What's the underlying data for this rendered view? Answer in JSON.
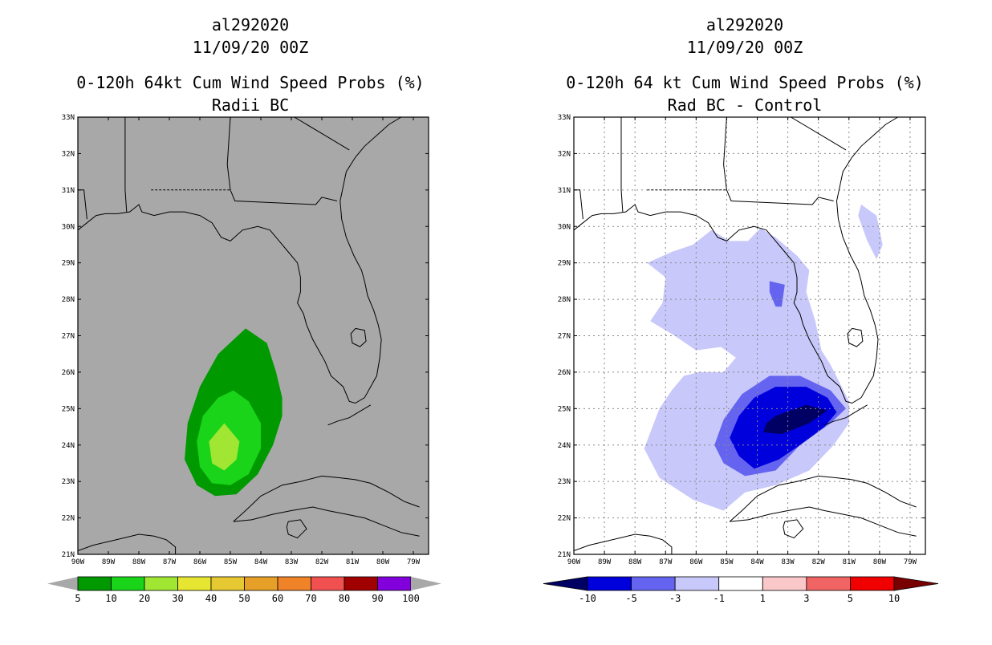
{
  "panels": [
    {
      "title_line1": "al292020",
      "title_line2": "11/09/20 00Z",
      "title_line3": "0-120h 64kt Cum Wind Speed Probs (%)",
      "title_line4": "Radii BC",
      "background": "#a8a8a8",
      "land_background": "#a8a8a8"
    },
    {
      "title_line1": "al292020",
      "title_line2": "11/09/20 00Z",
      "title_line3": "0-120h 64 kt Cum Wind Speed Probs (%)",
      "title_line4": "Rad BC - Control",
      "background": "#ffffff"
    }
  ],
  "chart_data": [
    {
      "type": "heatmap",
      "title": "0-120h 64kt Cum Wind Speed Probs (%)",
      "subtitle": "Radii BC",
      "storm_id": "al292020",
      "datetime": "11/09/20 00Z",
      "x_range": [
        -90,
        -78.5
      ],
      "y_range": [
        21,
        33
      ],
      "x_ticks": [
        -90,
        -89,
        -88,
        -87,
        -86,
        -85,
        -84,
        -83,
        -82,
        -81,
        -80,
        -79
      ],
      "x_tick_labels": [
        "90W",
        "89W",
        "88W",
        "87W",
        "86W",
        "85W",
        "84W",
        "83W",
        "82W",
        "81W",
        "80W",
        "79W"
      ],
      "y_ticks": [
        21,
        22,
        23,
        24,
        25,
        26,
        27,
        28,
        29,
        30,
        31,
        32,
        33
      ],
      "y_tick_labels": [
        "21N",
        "22N",
        "23N",
        "24N",
        "25N",
        "26N",
        "27N",
        "28N",
        "29N",
        "30N",
        "31N",
        "32N",
        "33N"
      ],
      "grid": false,
      "colorbar": {
        "labels": [
          "5",
          "10",
          "20",
          "30",
          "40",
          "50",
          "60",
          "70",
          "80",
          "90",
          "100"
        ],
        "colors": [
          "#009a00",
          "#19d419",
          "#a0e632",
          "#e6e632",
          "#e6c832",
          "#e6a028",
          "#f08228",
          "#f05050",
          "#a00000",
          "#8200dc"
        ],
        "end_color": "#a8a8a8"
      },
      "contours": [
        {
          "level": 5,
          "color": "#009a00",
          "points": [
            [
              -84.5,
              27.2
            ],
            [
              -83.8,
              26.8
            ],
            [
              -83.5,
              26.0
            ],
            [
              -83.3,
              25.3
            ],
            [
              -83.3,
              24.8
            ],
            [
              -83.6,
              24.0
            ],
            [
              -84.1,
              23.2
            ],
            [
              -84.8,
              22.65
            ],
            [
              -85.5,
              22.6
            ],
            [
              -86.1,
              22.9
            ],
            [
              -86.5,
              23.6
            ],
            [
              -86.4,
              24.6
            ],
            [
              -86.0,
              25.6
            ],
            [
              -85.4,
              26.5
            ]
          ]
        },
        {
          "level": 10,
          "color": "#19d419",
          "points": [
            [
              -84.9,
              25.5
            ],
            [
              -84.4,
              25.2
            ],
            [
              -84.0,
              24.6
            ],
            [
              -84.0,
              23.9
            ],
            [
              -84.4,
              23.2
            ],
            [
              -85.0,
              22.9
            ],
            [
              -85.6,
              22.95
            ],
            [
              -86.0,
              23.4
            ],
            [
              -86.1,
              24.1
            ],
            [
              -85.9,
              24.8
            ],
            [
              -85.4,
              25.3
            ]
          ]
        },
        {
          "level": 20,
          "color": "#a0e632",
          "points": [
            [
              -85.2,
              24.6
            ],
            [
              -84.7,
              24.1
            ],
            [
              -84.8,
              23.6
            ],
            [
              -85.2,
              23.3
            ],
            [
              -85.6,
              23.5
            ],
            [
              -85.7,
              24.1
            ]
          ]
        }
      ]
    },
    {
      "type": "heatmap",
      "title": "0-120h 64 kt Cum Wind Speed Probs (%)",
      "subtitle": "Rad BC - Control",
      "storm_id": "al292020",
      "datetime": "11/09/20 00Z",
      "x_range": [
        -90,
        -78.5
      ],
      "y_range": [
        21,
        33
      ],
      "x_ticks": [
        -90,
        -89,
        -88,
        -87,
        -86,
        -85,
        -84,
        -83,
        -82,
        -81,
        -80,
        -79
      ],
      "x_tick_labels": [
        "90W",
        "89W",
        "88W",
        "87W",
        "86W",
        "85W",
        "84W",
        "83W",
        "82W",
        "81W",
        "80W",
        "79W"
      ],
      "y_ticks": [
        21,
        22,
        23,
        24,
        25,
        26,
        27,
        28,
        29,
        30,
        31,
        32,
        33
      ],
      "y_tick_labels": [
        "21N",
        "22N",
        "23N",
        "24N",
        "25N",
        "26N",
        "27N",
        "28N",
        "29N",
        "30N",
        "31N",
        "32N",
        "33N"
      ],
      "grid": true,
      "colorbar": {
        "labels": [
          "-10",
          "-5",
          "-3",
          "-1",
          "1",
          "3",
          "5",
          "10"
        ],
        "colors": [
          "#0000dc",
          "#6464f0",
          "#c8c8fa",
          "#ffffff",
          "#fac8c8",
          "#f06464",
          "#f00000"
        ],
        "left_end_color": "#000064",
        "right_end_color": "#780000"
      },
      "contours": [
        {
          "level": -1,
          "color": "#c8c8fa",
          "points": [
            [
              -85.5,
              29.9
            ],
            [
              -84.9,
              29.6
            ],
            [
              -84.3,
              29.6
            ],
            [
              -83.9,
              29.95
            ],
            [
              -83.4,
              29.7
            ],
            [
              -82.7,
              29.2
            ],
            [
              -82.3,
              28.8
            ],
            [
              -82.4,
              28.2
            ],
            [
              -82.1,
              27.4
            ],
            [
              -81.9,
              26.6
            ],
            [
              -81.6,
              26.2
            ],
            [
              -81.0,
              25.2
            ],
            [
              -81.0,
              24.6
            ],
            [
              -81.5,
              24.0
            ],
            [
              -82.3,
              23.3
            ],
            [
              -83.4,
              22.9
            ],
            [
              -84.4,
              22.7
            ],
            [
              -85.1,
              22.2
            ],
            [
              -86.1,
              22.5
            ],
            [
              -87.2,
              23.1
            ],
            [
              -87.7,
              23.9
            ],
            [
              -87.2,
              25.0
            ],
            [
              -86.8,
              25.5
            ],
            [
              -86.4,
              25.9
            ],
            [
              -85.9,
              26.0
            ],
            [
              -85.1,
              26.0
            ],
            [
              -84.7,
              26.4
            ],
            [
              -85.2,
              26.7
            ],
            [
              -85.1,
              26.7
            ],
            [
              -86.0,
              26.6
            ],
            [
              -86.7,
              27.0
            ],
            [
              -87.5,
              27.4
            ],
            [
              -87.1,
              27.9
            ],
            [
              -87.0,
              28.6
            ],
            [
              -87.6,
              29.0
            ],
            [
              -86.8,
              29.3
            ],
            [
              -86.1,
              29.5
            ]
          ]
        },
        {
          "level": -1,
          "color": "#c8c8fa",
          "points": [
            [
              -80.6,
              30.6
            ],
            [
              -80.1,
              30.3
            ],
            [
              -79.9,
              29.5
            ],
            [
              -80.1,
              29.1
            ],
            [
              -80.4,
              29.6
            ],
            [
              -80.7,
              30.3
            ]
          ]
        },
        {
          "level": -3,
          "color": "#6464f0",
          "points": [
            [
              -83.6,
              28.5
            ],
            [
              -83.1,
              28.4
            ],
            [
              -83.2,
              27.8
            ],
            [
              -83.4,
              27.8
            ],
            [
              -83.6,
              28.2
            ]
          ]
        },
        {
          "level": -3,
          "color": "#6464f0",
          "points": [
            [
              -83.6,
              25.9
            ],
            [
              -82.6,
              25.9
            ],
            [
              -81.6,
              25.5
            ],
            [
              -81.1,
              25.0
            ],
            [
              -81.6,
              24.6
            ],
            [
              -82.6,
              24.0
            ],
            [
              -83.4,
              23.3
            ],
            [
              -84.4,
              23.15
            ],
            [
              -85.1,
              23.5
            ],
            [
              -85.4,
              24.0
            ],
            [
              -85.1,
              24.7
            ],
            [
              -84.5,
              25.4
            ]
          ]
        },
        {
          "level": -5,
          "color": "#0000dc",
          "points": [
            [
              -83.4,
              25.6
            ],
            [
              -82.4,
              25.6
            ],
            [
              -81.7,
              25.3
            ],
            [
              -81.4,
              24.9
            ],
            [
              -81.8,
              24.5
            ],
            [
              -82.6,
              24.0
            ],
            [
              -83.3,
              23.6
            ],
            [
              -84.1,
              23.35
            ],
            [
              -84.6,
              23.7
            ],
            [
              -84.9,
              24.2
            ],
            [
              -84.6,
              24.8
            ],
            [
              -84.1,
              25.3
            ]
          ]
        },
        {
          "level": -10,
          "color": "#000064",
          "points": [
            [
              -83.4,
              24.8
            ],
            [
              -82.4,
              25.1
            ],
            [
              -81.7,
              24.95
            ],
            [
              -82.3,
              24.6
            ],
            [
              -83.2,
              24.3
            ],
            [
              -83.8,
              24.35
            ],
            [
              -83.7,
              24.6
            ]
          ]
        }
      ]
    }
  ]
}
